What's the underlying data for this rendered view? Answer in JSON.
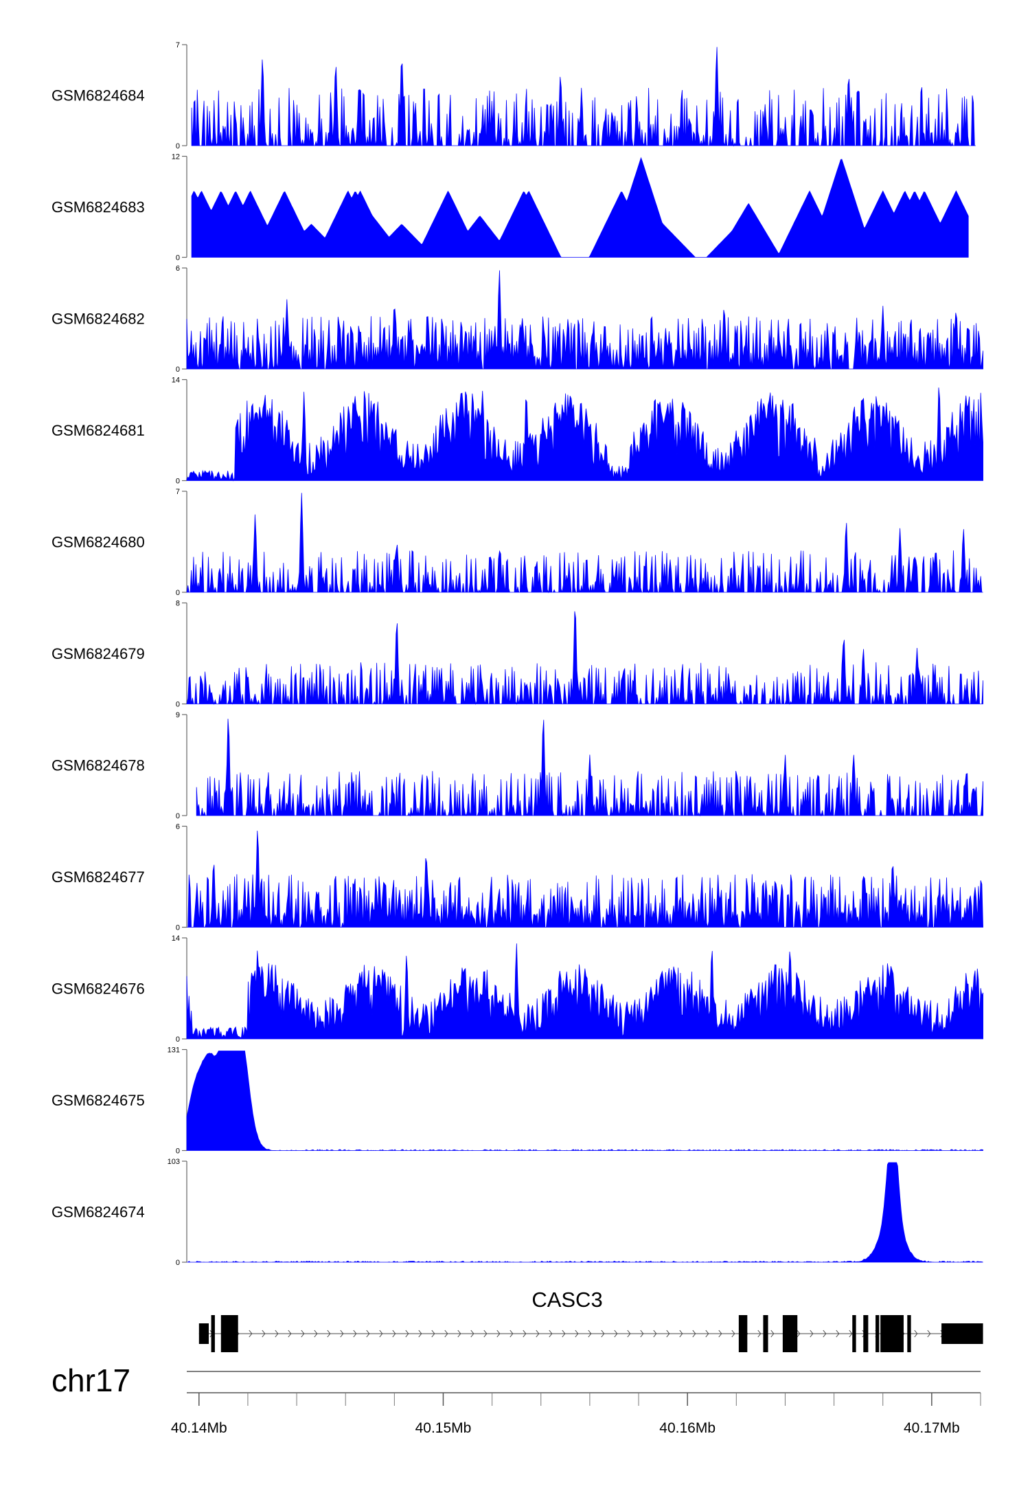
{
  "chart_data": {
    "type": "area",
    "chromosome": "chr17",
    "x_range": [
      40.1395,
      40.172
    ],
    "x_unit": "Mb",
    "x_ticks": [
      {
        "value": 40.14,
        "label": "40.14Mb"
      },
      {
        "value": 40.15,
        "label": "40.15Mb"
      },
      {
        "value": 40.16,
        "label": "40.16Mb"
      },
      {
        "value": 40.17,
        "label": "40.17Mb"
      }
    ],
    "x_minor_ticks": [
      40.142,
      40.144,
      40.146,
      40.148,
      40.152,
      40.154,
      40.156,
      40.158,
      40.162,
      40.164,
      40.166,
      40.168,
      40.172
    ],
    "fill_color": "#0000ff",
    "tracks": [
      {
        "name": "GSM6824684",
        "ymax": 7,
        "ymax_label": "7",
        "ymin_label": "0",
        "style": "spiky",
        "seed": 11,
        "x_start": 40.1397,
        "x_end": 40.1718,
        "density": 0.55,
        "level": 0.42,
        "peaks": [
          [
            40.1426,
            6.2
          ],
          [
            40.1456,
            5.8
          ],
          [
            40.1483,
            6.3
          ],
          [
            40.1548,
            5.0
          ],
          [
            40.1612,
            7.0
          ],
          [
            40.1666,
            5.0
          ]
        ]
      },
      {
        "name": "GSM6824683",
        "ymax": 12,
        "ymax_label": "12",
        "ymin_label": "0",
        "style": "sparse",
        "seed": 23,
        "x_start": 40.1397,
        "x_end": 40.1715,
        "peaks": [
          [
            40.1398,
            8.0
          ],
          [
            40.1401,
            8.0
          ],
          [
            40.1404,
            5.0
          ],
          [
            40.1409,
            8.0
          ],
          [
            40.1413,
            5.0
          ],
          [
            40.1415,
            8.0
          ],
          [
            40.1421,
            8.0
          ],
          [
            40.1427,
            4.0
          ],
          [
            40.1435,
            8.0
          ],
          [
            40.1446,
            4.0
          ],
          [
            40.1461,
            8.0
          ],
          [
            40.1464,
            8.0
          ],
          [
            40.1466,
            8.0
          ],
          [
            40.1468,
            6.0
          ],
          [
            40.1471,
            5.0
          ],
          [
            40.1483,
            4.0
          ],
          [
            40.1502,
            8.0
          ],
          [
            40.1515,
            5.0
          ],
          [
            40.1533,
            8.0
          ],
          [
            40.1535,
            8.0
          ],
          [
            40.1573,
            8.0
          ],
          [
            40.1581,
            12.0
          ],
          [
            40.159,
            4.0
          ],
          [
            40.1621,
            4.0
          ],
          [
            40.1625,
            6.5
          ],
          [
            40.165,
            8.0
          ],
          [
            40.1663,
            12.0
          ],
          [
            40.168,
            8.0
          ],
          [
            40.1689,
            8.0
          ],
          [
            40.1693,
            8.0
          ],
          [
            40.1697,
            8.0
          ],
          [
            40.171,
            8.0
          ]
        ]
      },
      {
        "name": "GSM6824682",
        "ymax": 6,
        "ymax_label": "6",
        "ymin_label": "0",
        "style": "spiky",
        "seed": 37,
        "x_start": 40.1395,
        "x_end": 40.1721,
        "density": 0.9,
        "level": 0.38,
        "peaks": [
          [
            40.1523,
            6.0
          ],
          [
            40.1436,
            4.2
          ],
          [
            40.148,
            4.0
          ],
          [
            40.1615,
            3.8
          ],
          [
            40.168,
            3.8
          ],
          [
            40.171,
            3.6
          ]
        ]
      },
      {
        "name": "GSM6824681",
        "ymax": 14,
        "ymax_label": "14",
        "ymin_label": "0",
        "style": "dense",
        "seed": 41,
        "x_start": 40.1395,
        "x_end": 40.1721,
        "level": 0.55,
        "dips": [
          [
            40.1395,
            40.1415,
            0.1
          ],
          [
            40.1568,
            40.1576,
            0.15
          ]
        ],
        "peaks": [
          [
            40.1443,
            12.5
          ],
          [
            40.1516,
            12.8
          ],
          [
            40.1534,
            12.5
          ],
          [
            40.1643,
            12.0
          ],
          [
            40.1703,
            13.8
          ]
        ]
      },
      {
        "name": "GSM6824680",
        "ymax": 7,
        "ymax_label": "7",
        "ymin_label": "0",
        "style": "spiky",
        "seed": 53,
        "x_start": 40.1395,
        "x_end": 40.1721,
        "density": 0.6,
        "level": 0.3,
        "peaks": [
          [
            40.1442,
            7.0
          ],
          [
            40.1423,
            5.5
          ],
          [
            40.1481,
            3.5
          ],
          [
            40.1665,
            5.0
          ],
          [
            40.1687,
            4.5
          ],
          [
            40.1713,
            4.5
          ]
        ]
      },
      {
        "name": "GSM6824679",
        "ymax": 8,
        "ymax_label": "8",
        "ymin_label": "0",
        "style": "spiky",
        "seed": 67,
        "x_start": 40.1395,
        "x_end": 40.1721,
        "density": 0.6,
        "level": 0.3,
        "peaks": [
          [
            40.1481,
            6.8
          ],
          [
            40.1554,
            8.0
          ],
          [
            40.1664,
            5.5
          ],
          [
            40.1672,
            4.5
          ],
          [
            40.1694,
            4.5
          ]
        ]
      },
      {
        "name": "GSM6824678",
        "ymax": 9,
        "ymax_label": "9",
        "ymin_label": "0",
        "style": "spiky",
        "seed": 71,
        "x_start": 40.1399,
        "x_end": 40.1721,
        "density": 0.6,
        "level": 0.32,
        "peaks": [
          [
            40.1412,
            9.0
          ],
          [
            40.1541,
            9.0
          ],
          [
            40.156,
            5.5
          ],
          [
            40.164,
            5.5
          ],
          [
            40.1668,
            5.6
          ]
        ]
      },
      {
        "name": "GSM6824677",
        "ymax": 6,
        "ymax_label": "6",
        "ymin_label": "0",
        "style": "spiky",
        "seed": 83,
        "x_start": 40.1395,
        "x_end": 40.1721,
        "density": 0.85,
        "level": 0.38,
        "peaks": [
          [
            40.1424,
            6.0
          ],
          [
            40.1406,
            4.0
          ],
          [
            40.1493,
            4.5
          ],
          [
            40.1684,
            4.0
          ]
        ]
      },
      {
        "name": "GSM6824676",
        "ymax": 14,
        "ymax_label": "14",
        "ymin_label": "0",
        "style": "dense",
        "seed": 97,
        "x_start": 40.1395,
        "x_end": 40.1721,
        "level": 0.42,
        "dips": [
          [
            40.1397,
            40.142,
            0.12
          ],
          [
            40.1483,
            40.1486,
            0.05
          ]
        ],
        "peaks": [
          [
            40.1424,
            12.8
          ],
          [
            40.1485,
            12.0
          ],
          [
            40.153,
            13.5
          ],
          [
            40.1642,
            13.0
          ],
          [
            40.161,
            13.0
          ]
        ]
      },
      {
        "name": "GSM6824675",
        "ymax": 131,
        "ymax_label": "131",
        "ymin_label": "0",
        "style": "smooth",
        "seed": 101,
        "x_start": 40.1395,
        "x_end": 40.1721,
        "noise": 2.5,
        "gaussians": [
          [
            40.1399,
            0.00035,
            85
          ],
          [
            40.1405,
            0.0003,
            100
          ],
          [
            40.1411,
            0.00025,
            131
          ],
          [
            40.1416,
            0.0003,
            95
          ],
          [
            40.1418,
            0.00035,
            70
          ]
        ]
      },
      {
        "name": "GSM6824674",
        "ymax": 103,
        "ymax_label": "103",
        "ymin_label": "0",
        "style": "smooth",
        "seed": 113,
        "x_start": 40.1395,
        "x_end": 40.1721,
        "noise": 2.0,
        "gaussians": [
          [
            40.1684,
            0.0002,
            103
          ],
          [
            40.16835,
            0.00045,
            45
          ]
        ]
      }
    ],
    "gene": {
      "name": "CASC3",
      "strand": "+",
      "start": 40.14,
      "end": 40.1721,
      "exons": [
        [
          40.14,
          40.1404,
          "utr"
        ],
        [
          40.1405,
          40.14065,
          "cds"
        ],
        [
          40.1409,
          40.1416,
          "cds"
        ],
        [
          40.1621,
          40.16245,
          "cds"
        ],
        [
          40.1631,
          40.1633,
          "cds"
        ],
        [
          40.1639,
          40.1645,
          "cds"
        ],
        [
          40.16675,
          40.1669,
          "cds"
        ],
        [
          40.1672,
          40.1674,
          "cds"
        ],
        [
          40.1677,
          40.16785,
          "cds"
        ],
        [
          40.1679,
          40.16885,
          "cds"
        ],
        [
          40.169,
          40.16915,
          "cds"
        ],
        [
          40.1704,
          40.1721,
          "utr"
        ]
      ]
    }
  }
}
